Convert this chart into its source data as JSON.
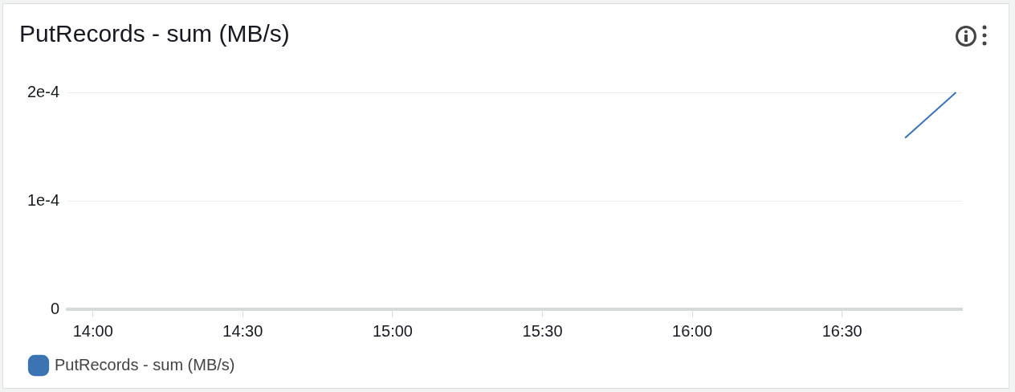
{
  "chart_data": {
    "type": "line",
    "title": "PutRecords - sum (MB/s)",
    "x": [
      16.71,
      16.88
    ],
    "series": [
      {
        "name": "PutRecords - sum (MB/s)",
        "color": "#3b73b3",
        "values": [
          0.000158,
          0.0002
        ]
      }
    ],
    "xlim": [
      13.915,
      16.9
    ],
    "xticks": [
      {
        "value": 14,
        "label": "14:00"
      },
      {
        "value": 14.5,
        "label": "14:30"
      },
      {
        "value": 15,
        "label": "15:00"
      },
      {
        "value": 15.5,
        "label": "15:30"
      },
      {
        "value": 16,
        "label": "16:00"
      },
      {
        "value": 16.5,
        "label": "16:30"
      }
    ],
    "ylim": [
      0,
      0.0002
    ],
    "yticks": [
      {
        "value": 0,
        "label": "0"
      },
      {
        "value": 0.0001,
        "label": "1e-4"
      },
      {
        "value": 0.0002,
        "label": "2e-4"
      }
    ],
    "grid": "y",
    "legend": "bottom left",
    "marker": "none"
  }
}
